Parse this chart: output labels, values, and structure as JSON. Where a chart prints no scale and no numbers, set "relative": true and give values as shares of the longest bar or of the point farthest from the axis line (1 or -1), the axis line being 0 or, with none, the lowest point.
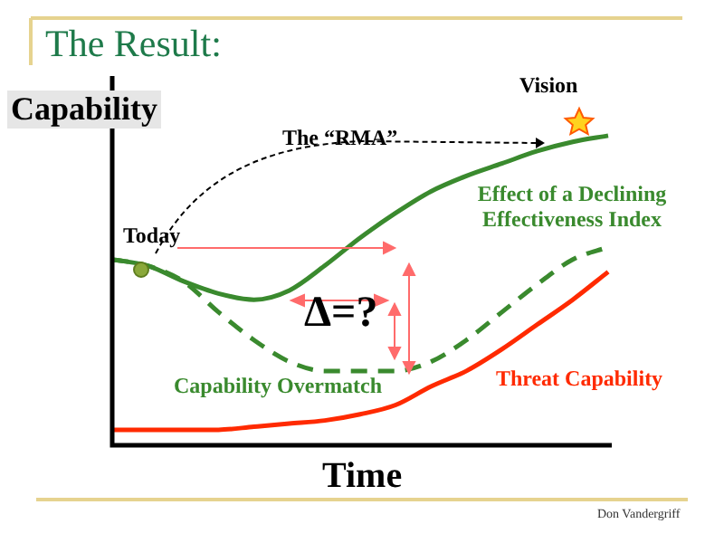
{
  "chart_data": {
    "type": "line",
    "title": "The Result:",
    "xlabel": "Time",
    "ylabel": "Capability",
    "relative": true,
    "legend": false,
    "marker": "none",
    "categories": [
      null,
      null,
      null,
      null,
      null,
      null,
      null,
      null,
      null,
      null,
      null,
      null,
      null,
      null,
      null
    ],
    "series": [
      {
        "color": "#3a8a2e",
        "line_style": "solid",
        "values": [
          0.6,
          0.58,
          0.53,
          0.49,
          0.47,
          0.5,
          0.58,
          0.67,
          0.75,
          0.82,
          0.87,
          0.91,
          0.95,
          0.98,
          1
        ]
      },
      {
        "name": "Effect of a Declining Effectiveness Index",
        "color": "#3a8a2e",
        "line_style": "dashed",
        "values": [
          0.6,
          0.58,
          0.53,
          0.43,
          0.34,
          0.27,
          0.24,
          0.24,
          0.24,
          0.27,
          0.34,
          0.43,
          0.52,
          0.6,
          0.64
        ]
      },
      {
        "name": "Threat Capability",
        "color": "#ff2a00",
        "line_style": "solid",
        "values": [
          0.05,
          0.05,
          0.05,
          0.05,
          0.06,
          0.07,
          0.08,
          0.1,
          0.13,
          0.19,
          0.24,
          0.31,
          0.39,
          0.47,
          0.56
        ]
      }
    ],
    "annotations": [
      "Today",
      "Vision",
      "The “RMA”",
      "Δ=?",
      "Capability Overmatch",
      "Don Vandergriff"
    ]
  }
}
